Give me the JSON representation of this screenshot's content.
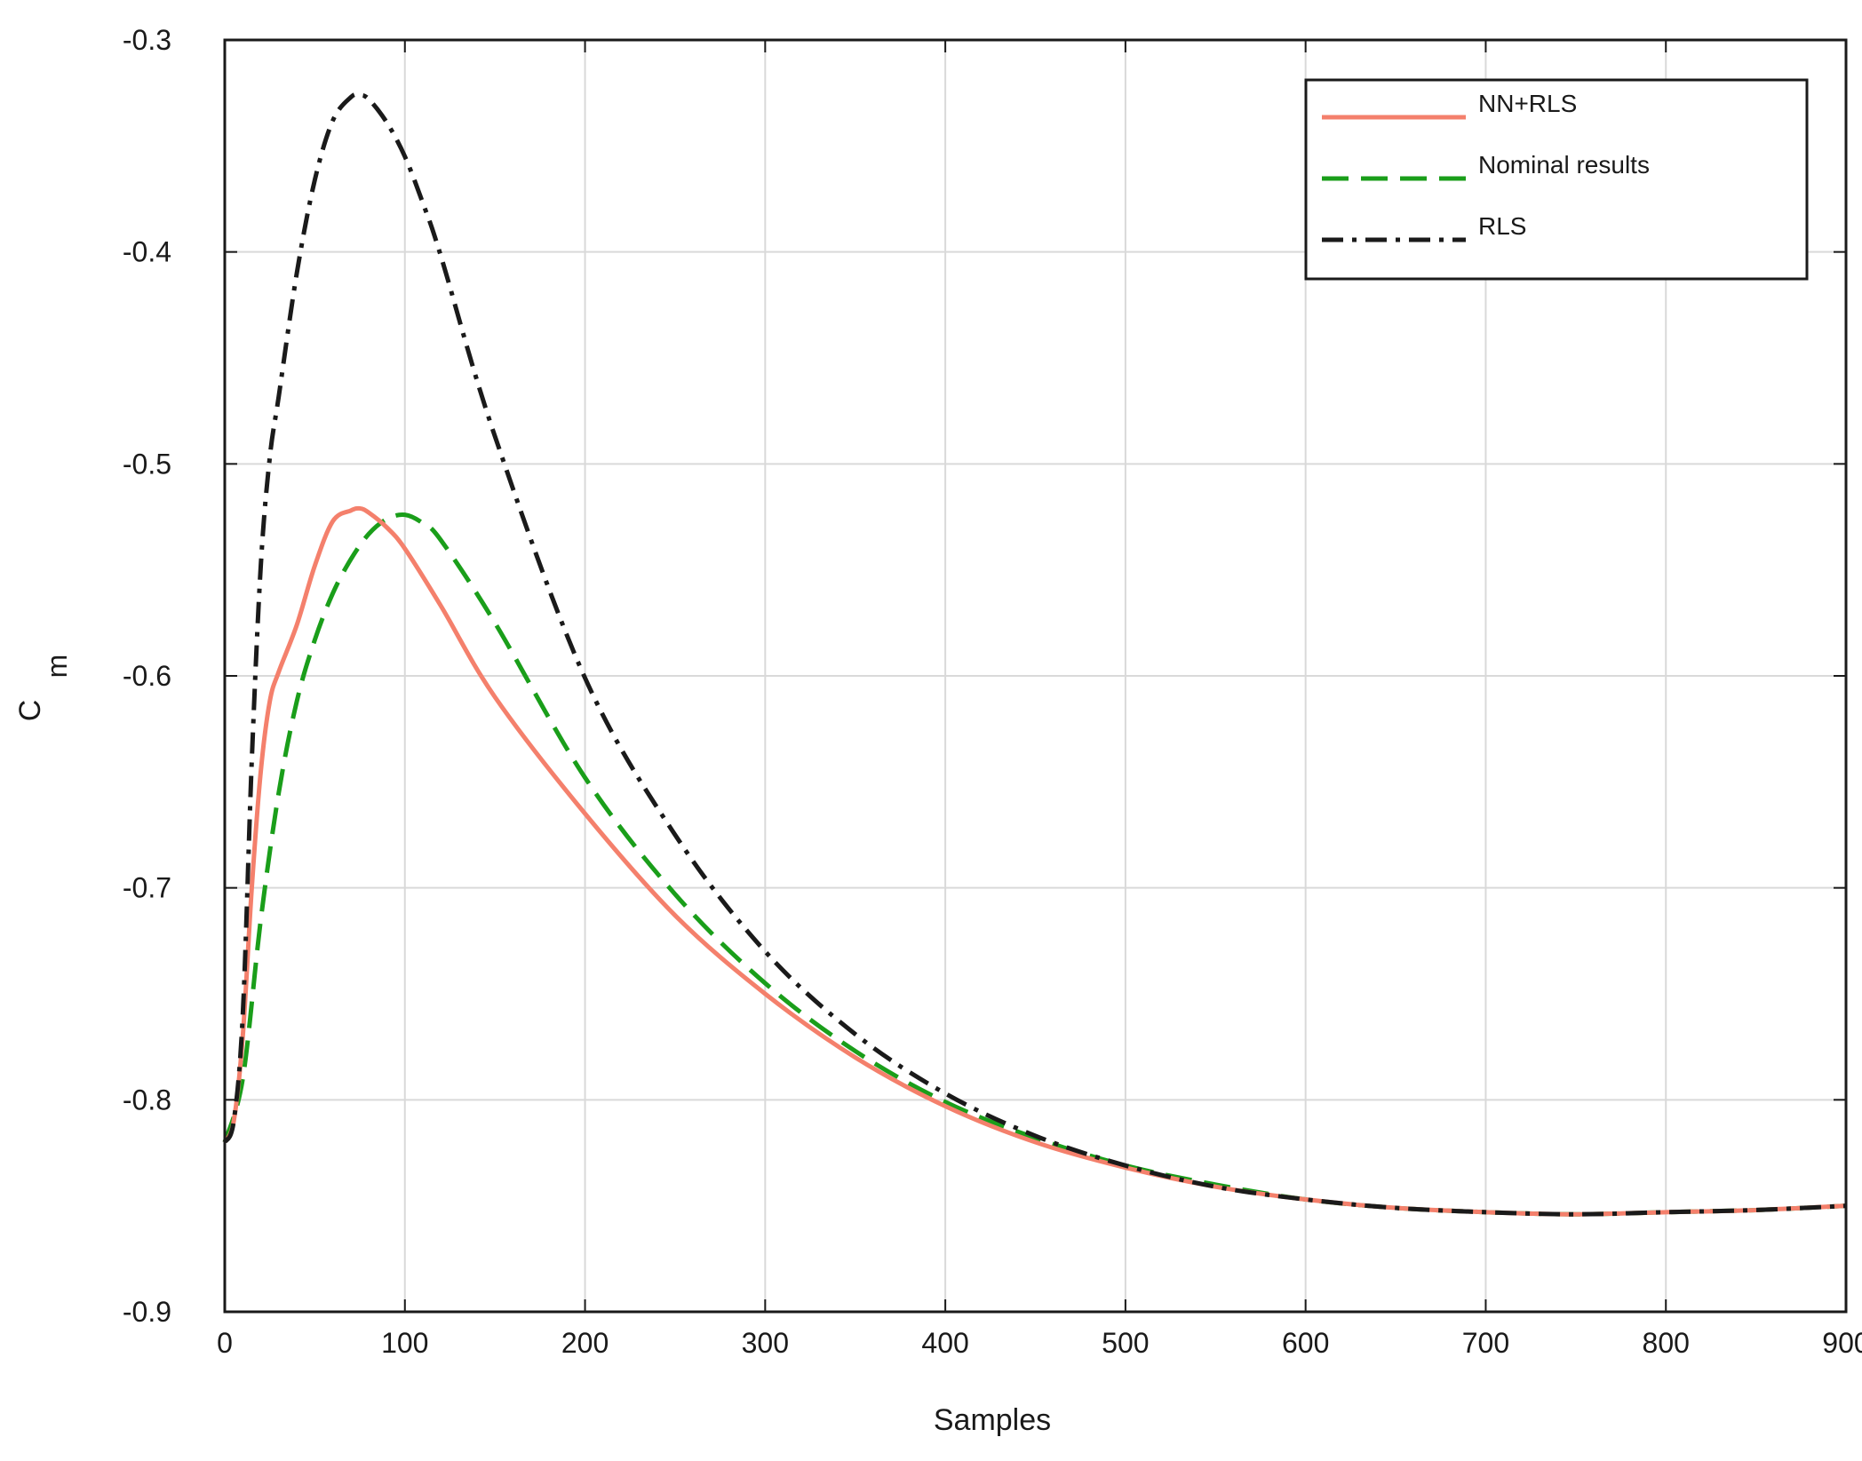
{
  "chart_data": {
    "type": "line",
    "xlabel": "Samples",
    "ylabel": "C",
    "ylabel_subscript": "m",
    "xlim": [
      0,
      900
    ],
    "ylim": [
      -0.9,
      -0.3
    ],
    "xticks": [
      0,
      100,
      200,
      300,
      400,
      500,
      600,
      700,
      800,
      900
    ],
    "xtick_labels": [
      "0",
      "100",
      "200",
      "300",
      "400",
      "500",
      "600",
      "700",
      "800",
      "900"
    ],
    "yticks": [
      -0.3,
      -0.4,
      -0.5,
      -0.6,
      -0.7,
      -0.8,
      -0.9
    ],
    "ytick_labels": [
      "-0.3",
      "-0.4",
      "-0.5",
      "-0.6",
      "-0.7",
      "-0.8",
      "-0.9"
    ],
    "grid": true,
    "legend_position": "top-right",
    "series": [
      {
        "name": "NN+RLS",
        "color": "#f4806c",
        "style": "solid",
        "x": [
          0,
          5,
          10,
          15,
          20,
          25,
          30,
          40,
          50,
          60,
          70,
          75,
          80,
          90,
          100,
          120,
          150,
          200,
          250,
          300,
          350,
          400,
          450,
          500,
          550,
          600,
          650,
          700,
          750,
          800,
          850,
          900
        ],
        "y": [
          -0.82,
          -0.81,
          -0.77,
          -0.7,
          -0.645,
          -0.612,
          -0.598,
          -0.576,
          -0.548,
          -0.527,
          -0.522,
          -0.521,
          -0.523,
          -0.53,
          -0.54,
          -0.567,
          -0.61,
          -0.665,
          -0.713,
          -0.75,
          -0.78,
          -0.803,
          -0.82,
          -0.832,
          -0.841,
          -0.847,
          -0.851,
          -0.853,
          -0.854,
          -0.853,
          -0.852,
          -0.85
        ]
      },
      {
        "name": "Nominal results",
        "color": "#1a9e1a",
        "style": "dashed",
        "x": [
          0,
          10,
          20,
          30,
          40,
          50,
          60,
          70,
          80,
          90,
          100,
          110,
          120,
          150,
          200,
          250,
          300,
          350,
          400,
          450,
          500,
          550,
          600,
          650,
          700,
          750,
          800,
          850,
          900
        ],
        "y": [
          -0.82,
          -0.79,
          -0.715,
          -0.655,
          -0.612,
          -0.583,
          -0.561,
          -0.545,
          -0.533,
          -0.526,
          -0.524,
          -0.528,
          -0.536,
          -0.575,
          -0.648,
          -0.703,
          -0.745,
          -0.777,
          -0.801,
          -0.818,
          -0.831,
          -0.84,
          -0.847,
          -0.851,
          -0.853,
          -0.854,
          -0.853,
          -0.852,
          -0.85
        ]
      },
      {
        "name": "RLS",
        "color": "#1a1a1a",
        "style": "dashdot",
        "x": [
          0,
          5,
          10,
          15,
          20,
          25,
          30,
          40,
          50,
          60,
          70,
          75,
          80,
          90,
          100,
          110,
          120,
          150,
          200,
          250,
          300,
          350,
          400,
          450,
          500,
          550,
          600,
          650,
          700,
          750,
          800,
          850,
          900
        ],
        "y": [
          -0.82,
          -0.81,
          -0.76,
          -0.64,
          -0.548,
          -0.497,
          -0.468,
          -0.41,
          -0.366,
          -0.338,
          -0.327,
          -0.326,
          -0.328,
          -0.339,
          -0.355,
          -0.377,
          -0.402,
          -0.487,
          -0.601,
          -0.675,
          -0.73,
          -0.769,
          -0.797,
          -0.817,
          -0.831,
          -0.841,
          -0.847,
          -0.851,
          -0.853,
          -0.854,
          -0.853,
          -0.852,
          -0.85
        ]
      }
    ]
  }
}
